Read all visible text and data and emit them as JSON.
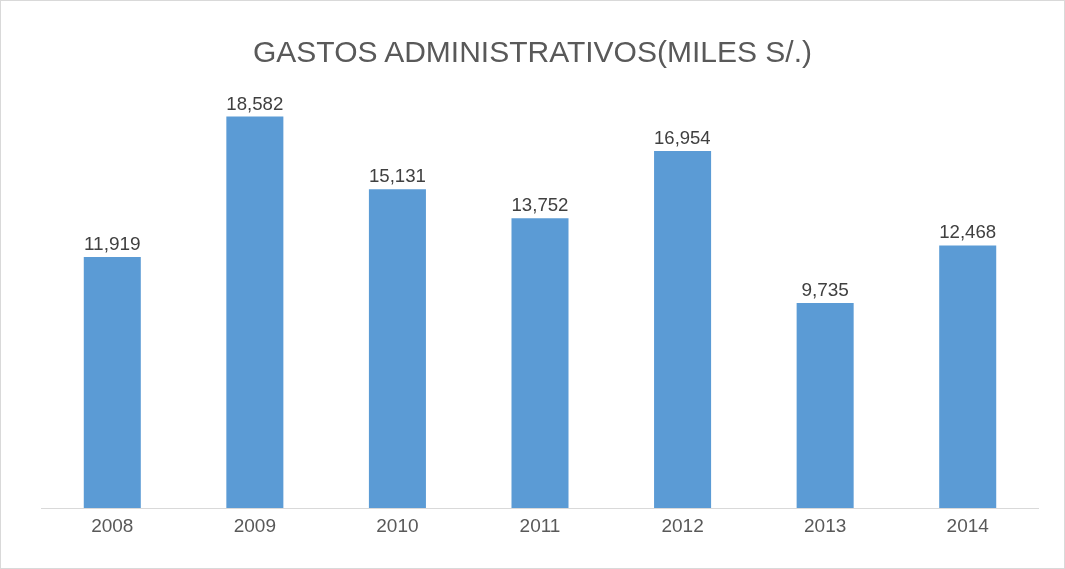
{
  "chart_data": {
    "type": "bar",
    "title": "GASTOS ADMINISTRATIVOS(MILES S/.)",
    "categories": [
      "2008",
      "2009",
      "2010",
      "2011",
      "2012",
      "2013",
      "2014"
    ],
    "values": [
      11919,
      18582,
      15131,
      13752,
      16954,
      9735,
      12468
    ],
    "value_labels": [
      "11,919",
      "18,582",
      "15,131",
      "13,752",
      "16,954",
      "9,735",
      "12,468"
    ],
    "color": "#5b9bd5",
    "grid": false,
    "legend": false
  }
}
